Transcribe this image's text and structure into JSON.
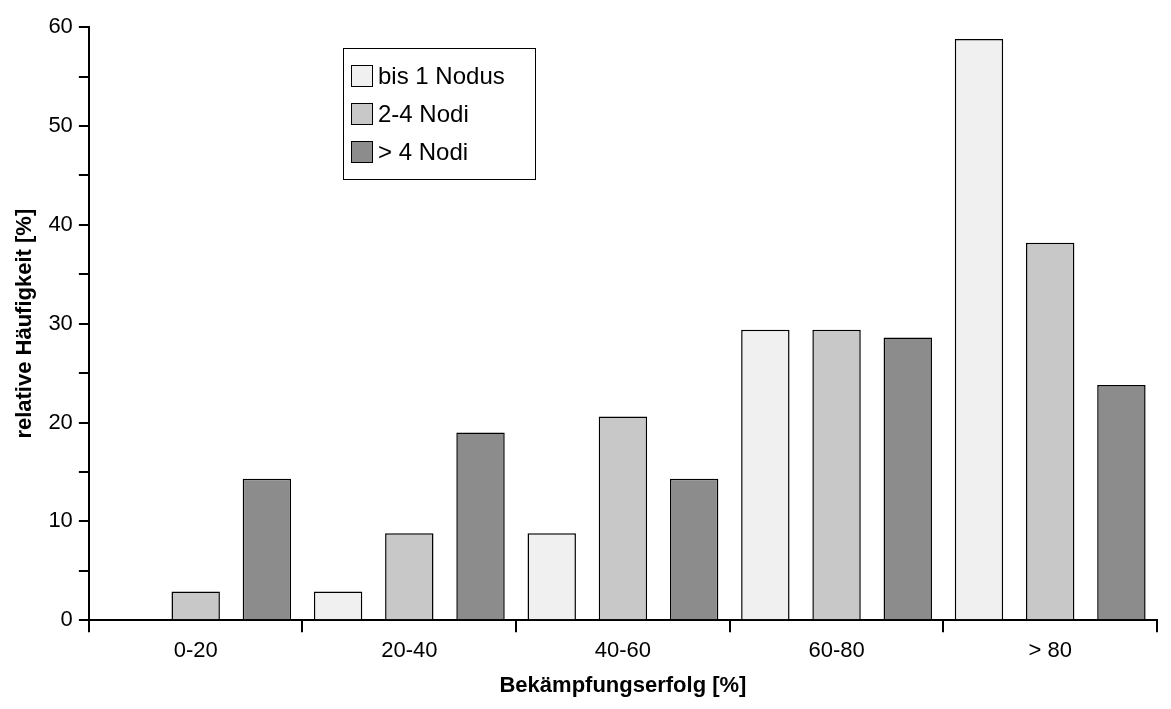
{
  "chart_data": {
    "type": "bar",
    "xlabel": "Bekämpfungserfolg [%]",
    "ylabel": "relative Häufigkeit [%]",
    "categories": [
      "0-20",
      "20-40",
      "40-60",
      "60-80",
      "> 80"
    ],
    "series": [
      {
        "name": "bis 1 Nodus",
        "color": "#f0f0f0",
        "values": [
          0,
          2.9,
          8.8,
          29.4,
          58.8
        ]
      },
      {
        "name": "2-4 Nodi",
        "color": "#c8c8c8",
        "values": [
          2.9,
          8.8,
          20.6,
          29.4,
          38.2
        ]
      },
      {
        "name": "> 4 Nodi",
        "color": "#8c8c8c",
        "values": [
          14.3,
          19,
          14.3,
          28.6,
          23.8
        ]
      }
    ],
    "ylim": [
      0,
      60
    ],
    "yticks": [
      0,
      {
        "value": 5,
        "label": null
      },
      10,
      {
        "value": 15,
        "label": null
      },
      20,
      {
        "value": 25,
        "label": null
      },
      30,
      {
        "value": 35,
        "label": null
      },
      40,
      {
        "value": 45,
        "label": null
      },
      50,
      {
        "value": 55,
        "label": null
      },
      60
    ],
    "grid": false,
    "legend": "top left"
  }
}
